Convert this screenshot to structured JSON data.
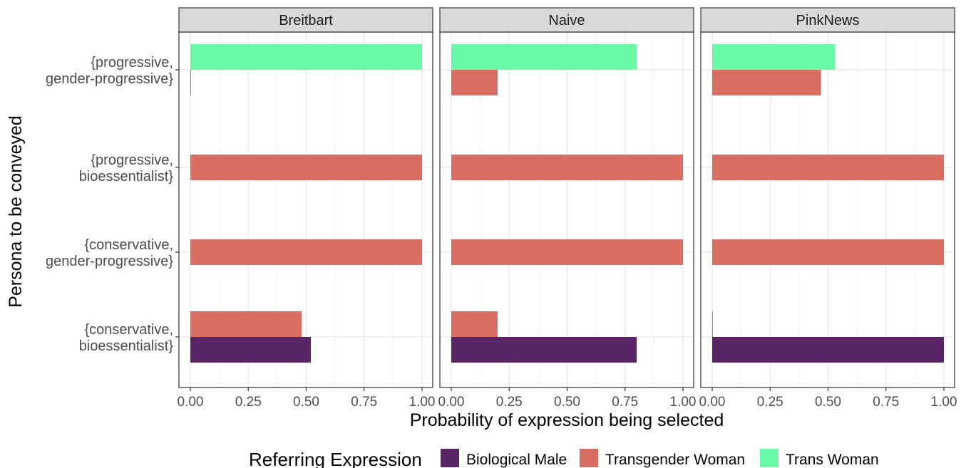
{
  "chart_data": {
    "type": "bar",
    "orientation": "horizontal",
    "facets": [
      "Breitbart",
      "Naive",
      "PinkNews"
    ],
    "categories": [
      [
        "{progressive,",
        "gender-progressive}"
      ],
      [
        "{progressive,",
        "bioessentialist}"
      ],
      [
        "{conservative,",
        "gender-progressive}"
      ],
      [
        "{conservative,",
        "bioessentialist}"
      ]
    ],
    "series": [
      {
        "name": "Biological Male",
        "color": "#5a2566",
        "values": {
          "Breitbart": [
            0,
            0,
            0,
            0.52
          ],
          "Naive": [
            0,
            0,
            0,
            0.8
          ],
          "PinkNews": [
            0,
            0,
            0,
            1.0
          ]
        }
      },
      {
        "name": "Transgender Woman",
        "color": "#db6e63",
        "values": {
          "Breitbart": [
            0.003,
            1.0,
            1.0,
            0.48
          ],
          "Naive": [
            0.2,
            1.0,
            1.0,
            0.2
          ],
          "PinkNews": [
            0.47,
            1.0,
            1.0,
            0.003
          ]
        }
      },
      {
        "name": "Trans Woman",
        "color": "#6bf9a7",
        "values": {
          "Breitbart": [
            1.0,
            0,
            0,
            0
          ],
          "Naive": [
            0.8,
            0,
            0,
            0
          ],
          "PinkNews": [
            0.53,
            0,
            0,
            0
          ]
        }
      }
    ],
    "xticks": [
      "0.00",
      "0.25",
      "0.50",
      "0.75",
      "1.00"
    ],
    "xlim": [
      0,
      1
    ],
    "xlabel": "Probability of expression being selected",
    "ylabel": "Persona to be conveyed",
    "legend_title": "Referring Expression",
    "legend_position": "bottom",
    "grid": true
  }
}
